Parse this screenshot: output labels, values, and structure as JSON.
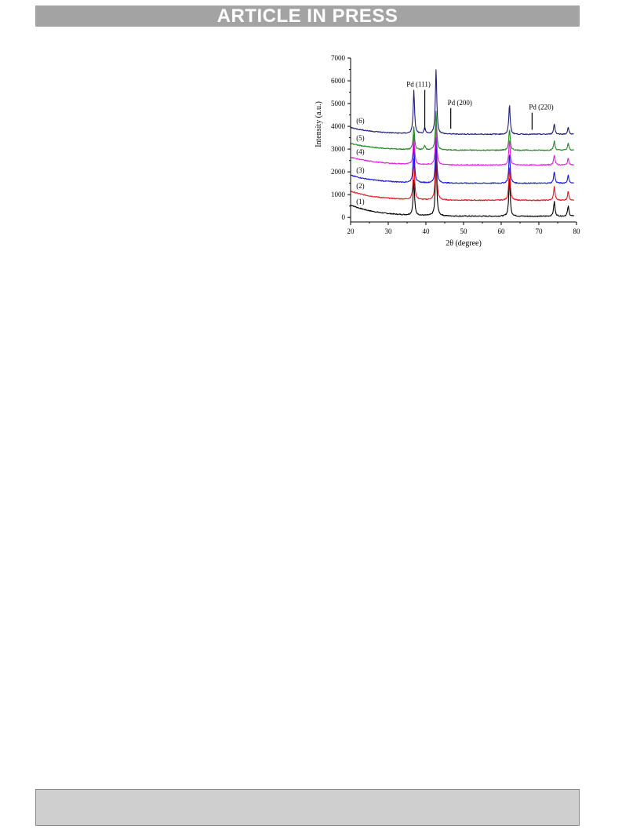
{
  "header": {
    "banner_text": "ARTICLE IN PRESS"
  },
  "chart_data": {
    "type": "line",
    "xlabel": "2θ (degree)",
    "ylabel": "Intensity (a.u.)",
    "xlim": [
      20,
      80
    ],
    "ylim": [
      -200,
      7000
    ],
    "xticks": [
      "20",
      "30",
      "40",
      "50",
      "60",
      "70",
      "80"
    ],
    "yticks": [
      "0",
      "1000",
      "2000",
      "3000",
      "4000",
      "5000",
      "6000",
      "7000"
    ],
    "annotations": [
      {
        "text": "Pd (111)",
        "x": 39.7,
        "y_from": 3850,
        "y_to": 5600
      },
      {
        "text": "Pd (200)",
        "x": 46.6,
        "y_from": 3900,
        "y_to": 4800
      },
      {
        "text": "Pd (220)",
        "x": 68.2,
        "y_from": 3850,
        "y_to": 4600
      }
    ],
    "series": [
      {
        "name": "(1)",
        "color": "#000000",
        "baseline": 50,
        "start": 550,
        "label_y": 700,
        "peaks": [
          [
            36.8,
            1550
          ],
          [
            42.7,
            2600
          ],
          [
            62.2,
            1700
          ],
          [
            74.1,
            650
          ],
          [
            77.8,
            450
          ]
        ]
      },
      {
        "name": "(2)",
        "color": "#e8141b",
        "baseline": 750,
        "start": 1150,
        "label_y": 1380,
        "peaks": [
          [
            36.8,
            1800
          ],
          [
            42.7,
            2500
          ],
          [
            62.2,
            1500
          ],
          [
            74.1,
            600
          ],
          [
            77.8,
            400
          ]
        ]
      },
      {
        "name": "(3)",
        "color": "#1515e6",
        "baseline": 1500,
        "start": 1850,
        "label_y": 2080,
        "peaks": [
          [
            36.8,
            1700
          ],
          [
            42.7,
            2000
          ],
          [
            62.2,
            1300
          ],
          [
            74.1,
            500
          ],
          [
            77.8,
            350
          ]
        ]
      },
      {
        "name": "(4)",
        "color": "#e31ee3",
        "baseline": 2300,
        "start": 2650,
        "label_y": 2880,
        "peaks": [
          [
            36.8,
            1300
          ],
          [
            42.7,
            1800
          ],
          [
            62.2,
            1100
          ],
          [
            74.1,
            450
          ],
          [
            77.8,
            300
          ]
        ]
      },
      {
        "name": "(5)",
        "color": "#1f8a1f",
        "baseline": 2950,
        "start": 3250,
        "label_y": 3480,
        "peaks": [
          [
            36.8,
            1000
          ],
          [
            39.7,
            200
          ],
          [
            42.7,
            1700
          ],
          [
            62.2,
            900
          ],
          [
            74.1,
            400
          ],
          [
            77.8,
            300
          ]
        ]
      },
      {
        "name": "(6)",
        "color": "#1c1c7a",
        "baseline": 3650,
        "start": 3950,
        "label_y": 4250,
        "peaks": [
          [
            36.8,
            1900
          ],
          [
            39.7,
            250
          ],
          [
            42.7,
            2850
          ],
          [
            62.2,
            1300
          ],
          [
            74.1,
            450
          ],
          [
            77.8,
            300
          ]
        ]
      }
    ]
  }
}
